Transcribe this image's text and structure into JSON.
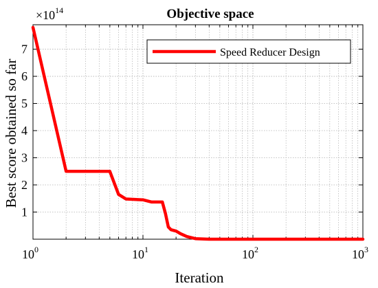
{
  "chart_data": {
    "type": "line",
    "title": "Objective space",
    "xlabel": "Iteration",
    "ylabel": "Best score obtained so far",
    "x_scale": "log",
    "xlim": [
      1,
      1000
    ],
    "ylim": [
      0,
      7.9
    ],
    "y_multiplier": "×10",
    "y_multiplier_exponent": "14",
    "x_ticks": [
      {
        "base": "10",
        "exp": "0"
      },
      {
        "base": "10",
        "exp": "1"
      },
      {
        "base": "10",
        "exp": "2"
      },
      {
        "base": "10",
        "exp": "3"
      }
    ],
    "y_ticks": [
      "1",
      "2",
      "3",
      "4",
      "5",
      "6",
      "7"
    ],
    "grid": true,
    "legend_position": "top-right",
    "series": [
      {
        "name": "Speed Reducer Design",
        "color": "#ff0000",
        "x": [
          1,
          2,
          5,
          6,
          7,
          10,
          12,
          15,
          16,
          17,
          18,
          20,
          22,
          25,
          30,
          40,
          100,
          1000
        ],
        "y": [
          7.8,
          2.5,
          2.5,
          1.65,
          1.48,
          1.45,
          1.37,
          1.37,
          0.95,
          0.45,
          0.35,
          0.3,
          0.2,
          0.1,
          0.02,
          0.0,
          0.0,
          0.0
        ]
      }
    ]
  }
}
